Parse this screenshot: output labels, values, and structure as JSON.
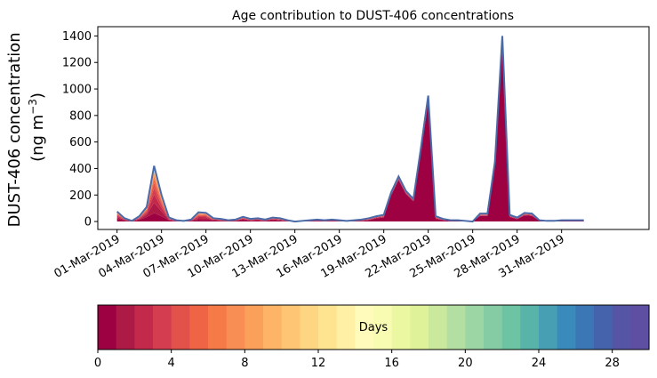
{
  "chart_data": {
    "type": "area",
    "title": "Age contribution to DUST-406 concentrations",
    "ylabel_line1": "DUST-406 concentration",
    "ylabel_line2_prefix": "(ng m",
    "ylabel_line2_sup": "−3",
    "ylabel_line2_suffix": ")",
    "ylim": [
      -60,
      1470
    ],
    "yticks": [
      0,
      200,
      400,
      600,
      800,
      1000,
      1200,
      1400
    ],
    "xlim": [
      -1.3,
      35.9
    ],
    "xticks": [
      {
        "x": 0,
        "label": "01-Mar-2019"
      },
      {
        "x": 3,
        "label": "04-Mar-2019"
      },
      {
        "x": 6,
        "label": "07-Mar-2019"
      },
      {
        "x": 9,
        "label": "10-Mar-2019"
      },
      {
        "x": 12,
        "label": "13-Mar-2019"
      },
      {
        "x": 15,
        "label": "16-Mar-2019"
      },
      {
        "x": 18,
        "label": "19-Mar-2019"
      },
      {
        "x": 21,
        "label": "22-Mar-2019"
      },
      {
        "x": 24,
        "label": "25-Mar-2019"
      },
      {
        "x": 27,
        "label": "28-Mar-2019"
      },
      {
        "x": 30,
        "label": "31-Mar-2019"
      }
    ],
    "x_days": [
      0,
      0.5,
      1,
      1.5,
      2,
      2.5,
      3,
      3.5,
      4,
      4.5,
      5,
      5.5,
      6,
      6.5,
      7,
      7.5,
      8,
      8.5,
      9,
      9.5,
      10,
      10.5,
      11,
      11.5,
      12,
      12.5,
      13,
      13.5,
      14,
      14.5,
      15,
      15.5,
      16,
      16.5,
      17,
      17.5,
      18,
      18.5,
      19,
      19.5,
      20,
      20.5,
      21,
      21.5,
      22,
      22.5,
      23,
      23.5,
      24,
      24.5,
      25,
      25.5,
      26,
      26.5,
      27,
      27.5,
      28,
      28.5,
      29,
      29.5,
      30,
      30.5,
      31,
      31.5
    ],
    "total": [
      75,
      25,
      5,
      40,
      110,
      420,
      200,
      30,
      10,
      5,
      15,
      70,
      65,
      25,
      20,
      10,
      15,
      35,
      20,
      25,
      15,
      30,
      25,
      10,
      0,
      5,
      10,
      15,
      10,
      15,
      10,
      5,
      10,
      15,
      25,
      40,
      50,
      220,
      340,
      230,
      170,
      550,
      950,
      40,
      20,
      10,
      10,
      5,
      0,
      60,
      60,
      450,
      1400,
      50,
      30,
      65,
      60,
      10,
      5,
      5,
      10,
      10,
      10,
      10
    ],
    "day0_fraction": [
      0.3,
      0.3,
      0.3,
      0.3,
      0.3,
      0.15,
      0.2,
      0.3,
      0.3,
      0.3,
      0.3,
      0.15,
      0.2,
      0.3,
      0.3,
      0.3,
      0.3,
      0.4,
      0.3,
      0.3,
      0.3,
      0.4,
      0.3,
      0.3,
      0.3,
      0.3,
      0.3,
      0.3,
      0.3,
      0.3,
      0.3,
      0.3,
      0.3,
      0.3,
      0.4,
      0.6,
      0.6,
      0.9,
      0.92,
      0.9,
      0.9,
      0.94,
      0.95,
      0.5,
      0.5,
      0.5,
      0.5,
      0.5,
      0.5,
      0.7,
      0.7,
      0.94,
      0.97,
      0.7,
      0.6,
      0.7,
      0.7,
      0.5,
      0.5,
      0.5,
      0.5,
      0.5,
      0.5,
      0.5
    ],
    "older_scale": [
      0.1,
      0.1,
      0.1,
      0.1,
      0.1,
      0.05,
      0.05,
      0.1,
      0.1,
      0.1,
      0.1,
      0.1,
      0.1,
      0.1,
      0.1,
      0.1,
      0.1,
      0.3,
      0.1,
      0.1,
      0.1,
      0.6,
      0.4,
      0.3,
      0.3,
      0.3,
      0.5,
      0.6,
      0.5,
      0.6,
      0.5,
      0.4,
      0.5,
      0.6,
      0.5,
      0.4,
      0.3,
      0.1,
      0.05,
      0.05,
      0.05,
      0.02,
      0.02,
      0.1,
      0.1,
      0.1,
      0.1,
      0.1,
      0.1,
      0.1,
      0.1,
      0.02,
      0.01,
      0.1,
      0.1,
      0.1,
      0.1,
      0.3,
      0.5,
      0.5,
      0.6,
      0.6,
      0.6,
      0.6
    ],
    "age_days": [
      0,
      1,
      2,
      3,
      4,
      5,
      6,
      7,
      8,
      9,
      10,
      11,
      12,
      13,
      14,
      15,
      16,
      17,
      18,
      19,
      20,
      21,
      22,
      23,
      24,
      25,
      26,
      27,
      28,
      29
    ],
    "age_colors": [
      "#9e0142",
      "#ae1a46",
      "#c2294a",
      "#d43d4f",
      "#e2514a",
      "#ee6445",
      "#f57a48",
      "#f88e53",
      "#fba05b",
      "#fdb466",
      "#fdc574",
      "#fed683",
      "#fee491",
      "#fff0a6",
      "#fffcbb",
      "#f7fcb2",
      "#ecf7a1",
      "#dff299",
      "#cbe99d",
      "#b3e0a2",
      "#9cd6a4",
      "#85cca5",
      "#6dc4a4",
      "#58b3a8",
      "#479fb3",
      "#3a8bbb",
      "#3b77b5",
      "#4563ac",
      "#5654a4",
      "#5e4fa2"
    ],
    "colorbar": {
      "label": "Days",
      "ticks": [
        {
          "v": 0,
          "label": "0"
        },
        {
          "v": 4,
          "label": "4"
        },
        {
          "v": 8,
          "label": "8"
        },
        {
          "v": 12,
          "label": "12"
        },
        {
          "v": 16,
          "label": "16"
        },
        {
          "v": 20,
          "label": "20"
        },
        {
          "v": 24,
          "label": "24"
        },
        {
          "v": 28,
          "label": "28"
        }
      ],
      "range": [
        0,
        30
      ]
    }
  }
}
